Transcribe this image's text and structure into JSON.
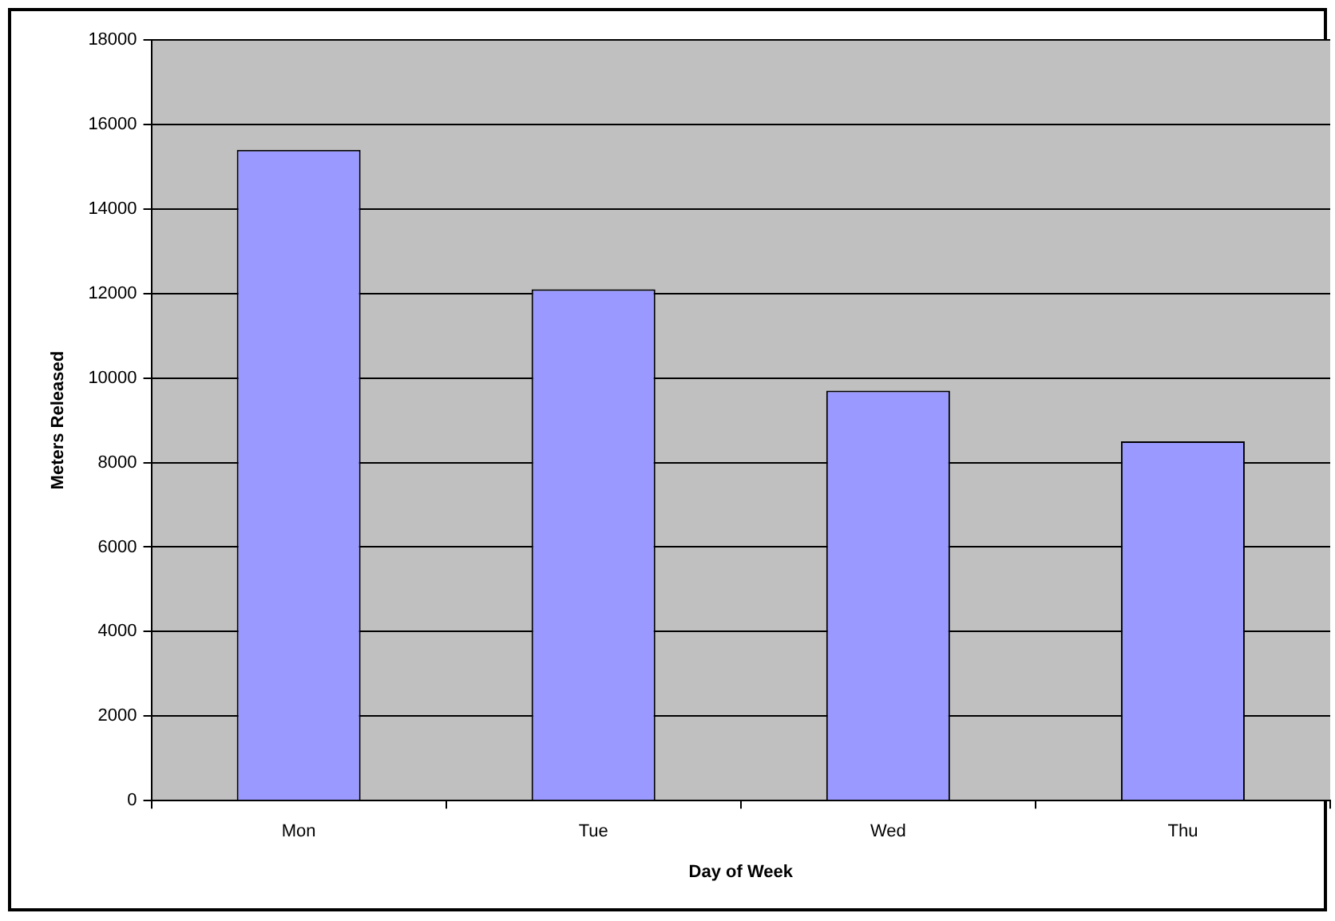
{
  "chart_data": {
    "type": "bar",
    "xlabel": "Day of Week",
    "ylabel": "Meters Released",
    "categories": [
      "Mon",
      "Tue",
      "Wed",
      "Thu"
    ],
    "values": [
      15400,
      12100,
      9700,
      8500
    ],
    "color": "#9999ff",
    "ylim": [
      0,
      18000
    ],
    "yticks": [
      0,
      2000,
      4000,
      6000,
      8000,
      10000,
      12000,
      14000,
      16000,
      18000
    ],
    "grid": "y",
    "legend": false
  }
}
